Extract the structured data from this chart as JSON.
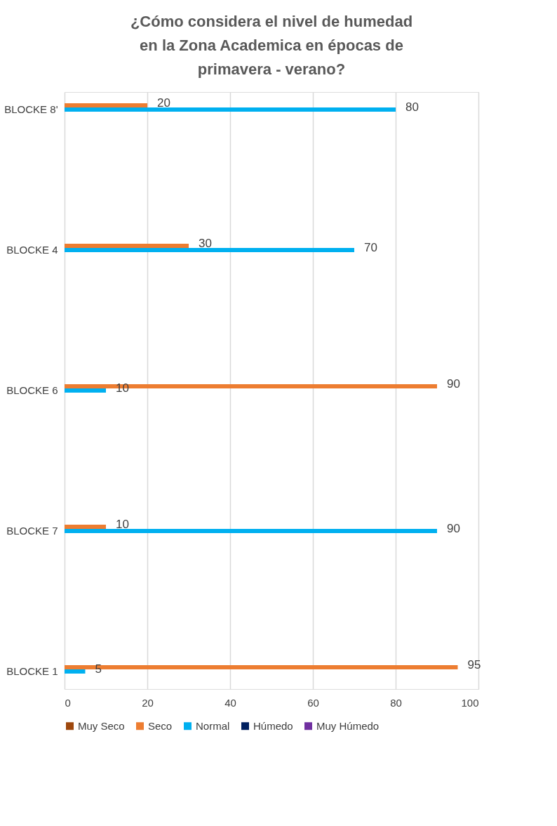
{
  "chart_data": {
    "type": "bar",
    "orientation": "horizontal",
    "title": "¿Cómo considera el nivel de  humedad en la Zona Academica en épocas de primavera - verano?",
    "categories": [
      "BLOCKE 8'",
      "BLOCKE 4",
      "BLOCKE 6",
      "BLOCKE 7",
      "BLOCKE 1"
    ],
    "series": [
      {
        "name": "Muy Seco",
        "color": "#9e480e",
        "values": [
          null,
          null,
          null,
          null,
          null
        ]
      },
      {
        "name": "Seco",
        "color": "#ed7d31",
        "values": [
          20,
          30,
          90,
          10,
          95
        ]
      },
      {
        "name": "Normal",
        "color": "#00b0f0",
        "values": [
          80,
          70,
          10,
          90,
          5
        ]
      },
      {
        "name": "Húmedo",
        "color": "#002060",
        "values": [
          null,
          null,
          null,
          null,
          null
        ]
      },
      {
        "name": "Muy Húmedo",
        "color": "#7030a0",
        "values": [
          null,
          null,
          null,
          null,
          null
        ]
      }
    ],
    "xlim": [
      0,
      100
    ],
    "xticks": [
      0,
      20,
      40,
      60,
      80,
      100
    ],
    "grid": "x",
    "legend": "bottom",
    "data_labels": true
  }
}
